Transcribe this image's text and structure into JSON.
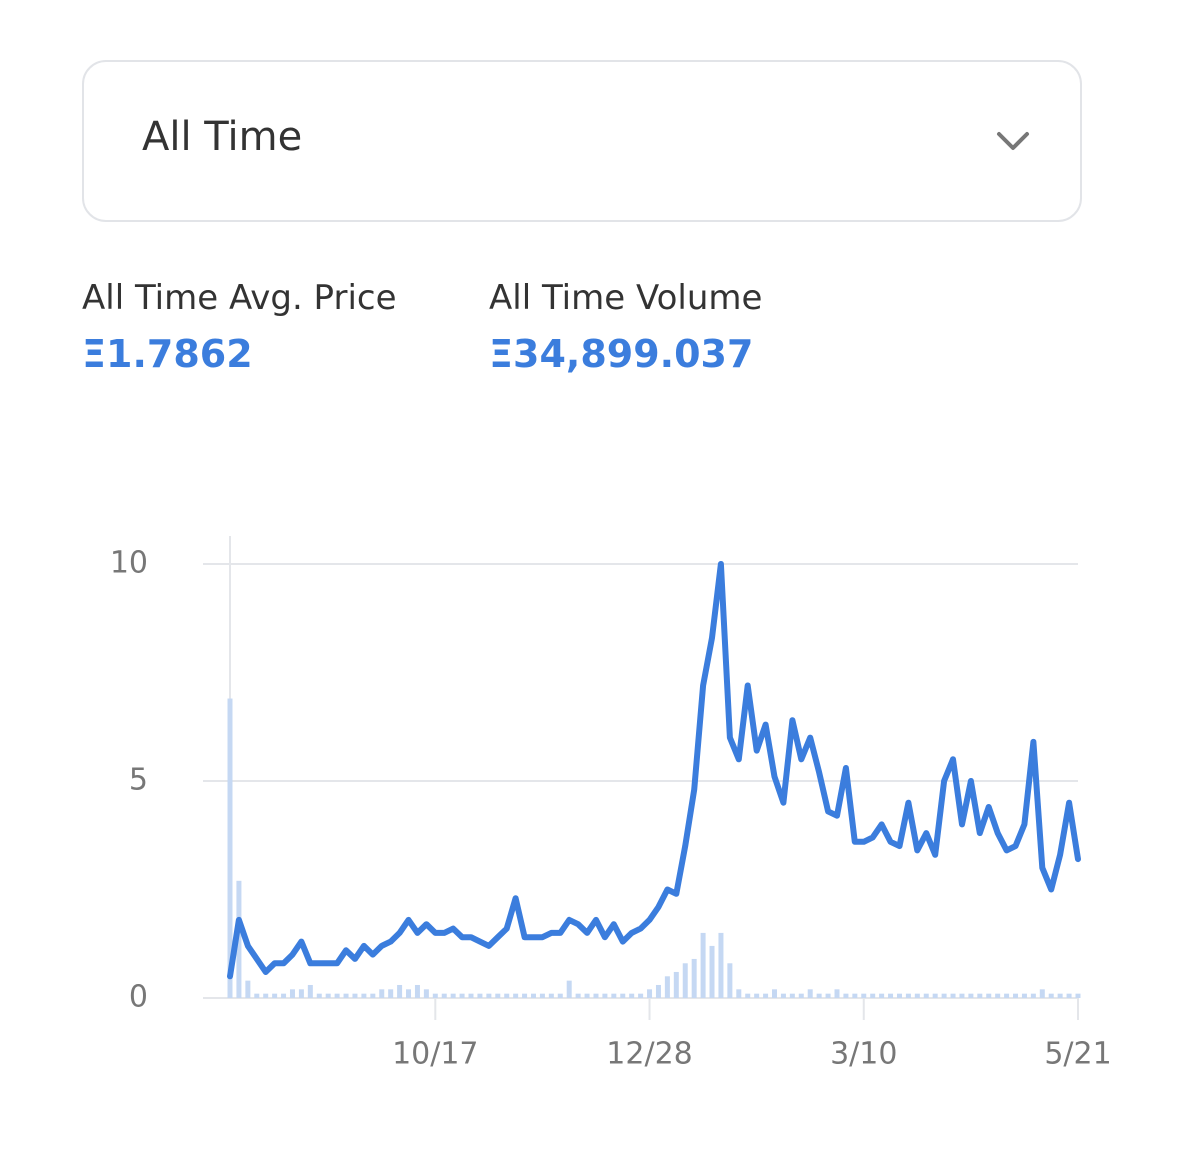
{
  "dropdown": {
    "label": "All Time"
  },
  "stats": [
    {
      "label": "All Time Avg. Price",
      "value": "Ξ1.7862"
    },
    {
      "label": "All Time Volume",
      "value": "Ξ34,899.037"
    }
  ],
  "chart_data": {
    "type": "line",
    "x": [
      "8/9",
      "8/12",
      "8/15",
      "8/18",
      "8/21",
      "8/24",
      "8/27",
      "8/30",
      "9/2",
      "9/5",
      "9/8",
      "9/11",
      "9/14",
      "9/17",
      "9/20",
      "9/23",
      "9/26",
      "9/29",
      "10/2",
      "10/5",
      "10/8",
      "10/11",
      "10/14",
      "10/17",
      "10/20",
      "10/23",
      "10/26",
      "10/29",
      "11/1",
      "11/4",
      "11/7",
      "11/10",
      "11/13",
      "11/16",
      "11/19",
      "11/22",
      "11/25",
      "11/28",
      "12/1",
      "12/4",
      "12/7",
      "12/10",
      "12/13",
      "12/16",
      "12/19",
      "12/22",
      "12/25",
      "12/28",
      "12/31",
      "1/3",
      "1/6",
      "1/9",
      "1/12",
      "1/15",
      "1/18",
      "1/21",
      "1/24",
      "1/27",
      "1/30",
      "2/2",
      "2/5",
      "2/8",
      "2/11",
      "2/14",
      "2/17",
      "2/20",
      "2/23",
      "2/26",
      "3/1",
      "3/4",
      "3/7",
      "3/10",
      "3/13",
      "3/16",
      "3/19",
      "3/22",
      "3/25",
      "3/28",
      "3/31",
      "4/3",
      "4/6",
      "4/9",
      "4/12",
      "4/15",
      "4/18",
      "4/21",
      "4/24",
      "4/27",
      "4/30",
      "5/3",
      "5/6",
      "5/9",
      "5/12",
      "5/15",
      "5/18",
      "5/21"
    ],
    "series": [
      {
        "color": "#3b7ddd",
        "values": [
          0.5,
          1.8,
          1.2,
          0.9,
          0.6,
          0.8,
          0.8,
          1.0,
          1.3,
          0.8,
          0.8,
          0.8,
          0.8,
          1.1,
          0.9,
          1.2,
          1.0,
          1.2,
          1.3,
          1.5,
          1.8,
          1.5,
          1.7,
          1.5,
          1.5,
          1.6,
          1.4,
          1.4,
          1.3,
          1.2,
          1.4,
          1.6,
          2.3,
          1.4,
          1.4,
          1.4,
          1.5,
          1.5,
          1.8,
          1.7,
          1.5,
          1.8,
          1.4,
          1.7,
          1.3,
          1.5,
          1.6,
          1.8,
          2.1,
          2.5,
          2.4,
          3.5,
          4.8,
          7.2,
          8.3,
          10.0,
          6.0,
          5.5,
          7.2,
          5.7,
          6.3,
          5.1,
          4.5,
          6.4,
          5.5,
          6.0,
          5.2,
          4.3,
          4.2,
          5.3,
          3.6,
          3.6,
          3.7,
          4.0,
          3.6,
          3.5,
          4.5,
          3.4,
          3.8,
          3.3,
          5.0,
          5.5,
          4.0,
          5.0,
          3.8,
          4.4,
          3.8,
          3.4,
          3.5,
          4.0,
          5.9,
          3.0,
          2.5,
          3.3,
          4.5,
          3.2
        ]
      },
      {
        "color": "#c5d8f3",
        "values": [
          6.9,
          2.7,
          0.4,
          0.1,
          0.1,
          0.1,
          0.1,
          0.2,
          0.2,
          0.3,
          0.1,
          0.1,
          0.1,
          0.1,
          0.1,
          0.1,
          0.1,
          0.2,
          0.2,
          0.3,
          0.2,
          0.3,
          0.2,
          0.1,
          0.1,
          0.1,
          0.1,
          0.1,
          0.1,
          0.1,
          0.1,
          0.1,
          0.1,
          0.1,
          0.1,
          0.1,
          0.1,
          0.1,
          0.4,
          0.1,
          0.1,
          0.1,
          0.1,
          0.1,
          0.1,
          0.1,
          0.1,
          0.2,
          0.3,
          0.5,
          0.6,
          0.8,
          0.9,
          1.5,
          1.2,
          1.5,
          0.8,
          0.2,
          0.1,
          0.1,
          0.1,
          0.2,
          0.1,
          0.1,
          0.1,
          0.2,
          0.1,
          0.1,
          0.2,
          0.1,
          0.1,
          0.1,
          0.1,
          0.1,
          0.1,
          0.1,
          0.1,
          0.1,
          0.1,
          0.1,
          0.1,
          0.1,
          0.1,
          0.1,
          0.1,
          0.1,
          0.1,
          0.1,
          0.1,
          0.1,
          0.1,
          0.2,
          0.1,
          0.1,
          0.1,
          0.1
        ]
      }
    ],
    "ylim": [
      0,
      10
    ],
    "yticks": [
      0,
      5,
      10
    ],
    "xticks": [
      "10/17",
      "12/28",
      "3/10",
      "5/21"
    ],
    "grid": true
  }
}
